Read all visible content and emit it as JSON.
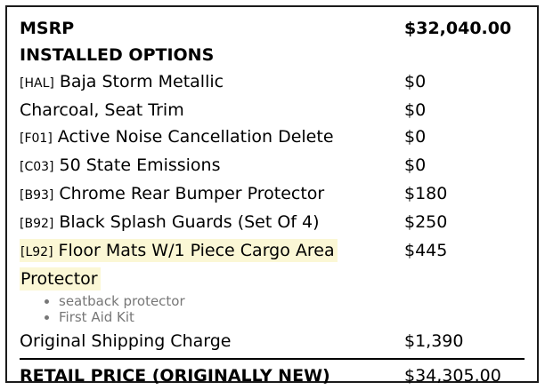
{
  "msrp": {
    "label": "MSRP",
    "value": "$32,040.00"
  },
  "installed_options": {
    "heading": "INSTALLED OPTIONS",
    "items": [
      {
        "code": "[HAL]",
        "name": "Baja Storm Metallic",
        "price": "$0"
      },
      {
        "code": "",
        "name": "Charcoal, Seat Trim",
        "price": "$0"
      },
      {
        "code": "[F01]",
        "name": "Active Noise Cancellation Delete",
        "price": "$0"
      },
      {
        "code": "[C03]",
        "name": "50 State Emissions",
        "price": "$0"
      },
      {
        "code": "[B93]",
        "name": "Chrome Rear Bumper Protector",
        "price": "$180"
      },
      {
        "code": "[B92]",
        "name": "Black Splash Guards (Set Of 4)",
        "price": "$250"
      },
      {
        "code": "[L92]",
        "name": "Floor Mats W/1 Piece Cargo Area Protector",
        "price": "$445",
        "highlighted": true
      }
    ],
    "sub_items": [
      "seatback protector",
      "First Aid Kit"
    ]
  },
  "shipping": {
    "label": "Original Shipping Charge",
    "value": "$1,390"
  },
  "retail": {
    "label": "RETAIL PRICE (ORIGINALLY NEW)",
    "value": "$34,305.00"
  },
  "colors": {
    "highlight": "#fbf7d5",
    "muted": "#777777"
  }
}
